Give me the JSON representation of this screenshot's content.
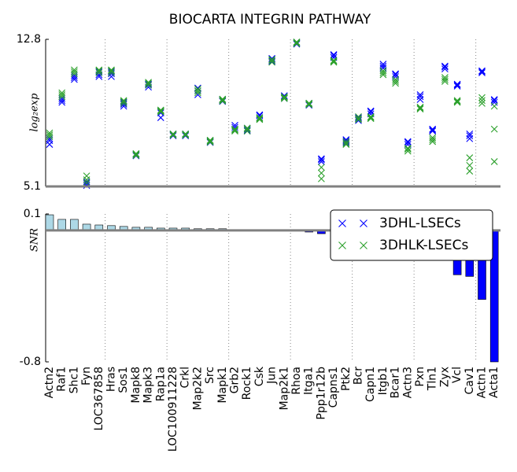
{
  "chart_data": [
    {
      "type": "scatter",
      "title": "BIOCARTA INTEGRIN PATHWAY",
      "y_label": "log₂exp",
      "ylim": [
        5.1,
        12.8
      ],
      "yticks": [
        5.1,
        12.8
      ],
      "series": [
        {
          "name": "3DHL-LSECs",
          "color": "#0000ff",
          "values": [
            [
              7.3,
              7.5,
              7.6
            ],
            [
              9.5,
              9.6,
              9.7
            ],
            [
              10.7,
              10.8,
              10.9
            ],
            [
              5.15,
              5.25,
              5.35
            ],
            [
              10.85,
              10.95,
              11.1
            ],
            [
              10.85,
              11.0,
              11.1
            ],
            [
              9.3,
              9.4,
              9.5
            ],
            [
              6.7,
              6.75,
              6.8
            ],
            [
              10.3,
              10.4,
              10.45
            ],
            [
              8.7,
              8.95,
              9.05
            ],
            [
              7.75,
              7.8,
              7.85
            ],
            [
              7.75,
              7.8,
              7.85
            ],
            [
              9.9,
              10.1,
              10.25
            ],
            [
              7.4,
              7.45,
              7.5
            ],
            [
              9.55,
              9.6,
              9.65
            ],
            [
              8.1,
              8.2,
              8.3
            ],
            [
              8.0,
              8.05,
              8.15
            ],
            [
              8.7,
              8.8,
              8.85
            ],
            [
              11.65,
              11.75,
              11.8
            ],
            [
              9.7,
              9.8,
              9.85
            ],
            [
              12.55,
              12.6,
              12.65
            ],
            [
              9.35,
              9.4,
              9.45
            ],
            [
              6.4,
              6.5,
              6.55
            ],
            [
              11.85,
              11.95,
              12.0
            ],
            [
              7.4,
              7.5,
              7.55
            ],
            [
              8.55,
              8.65,
              8.7
            ],
            [
              8.9,
              9.0,
              9.05
            ],
            [
              11.3,
              11.4,
              11.5
            ],
            [
              10.85,
              10.95,
              11.0
            ],
            [
              7.3,
              7.4,
              7.45
            ],
            [
              9.65,
              9.8,
              9.9
            ],
            [
              8.0,
              8.05,
              8.1
            ],
            [
              11.25,
              11.35,
              11.4
            ],
            [
              10.35,
              10.4,
              10.45
            ],
            [
              7.6,
              7.75,
              7.85
            ],
            [
              11.05,
              11.1,
              11.15
            ],
            [
              9.5,
              9.6,
              9.65
            ]
          ]
        },
        {
          "name": "3DHLK-LSECs",
          "color": "#2ca02c",
          "values": [
            [
              7.7,
              7.8,
              7.9
            ],
            [
              9.8,
              9.9,
              10.0
            ],
            [
              11.0,
              11.1,
              11.2
            ],
            [
              5.3,
              5.45,
              5.65
            ],
            [
              11.05,
              11.15,
              11.2
            ],
            [
              11.05,
              11.15,
              11.2
            ],
            [
              9.45,
              9.55,
              9.6
            ],
            [
              6.72,
              6.78,
              6.82
            ],
            [
              10.4,
              10.5,
              10.55
            ],
            [
              9.0,
              9.05,
              9.1
            ],
            [
              7.78,
              7.82,
              7.85
            ],
            [
              7.78,
              7.82,
              7.85
            ],
            [
              10.0,
              10.1,
              10.2
            ],
            [
              7.42,
              7.47,
              7.52
            ],
            [
              9.57,
              9.62,
              9.67
            ],
            [
              8.0,
              8.05,
              8.1
            ],
            [
              8.0,
              8.1,
              8.15
            ],
            [
              8.6,
              8.65,
              8.7
            ],
            [
              11.6,
              11.7,
              11.75
            ],
            [
              9.7,
              9.75,
              9.8
            ],
            [
              12.58,
              12.62,
              12.66
            ],
            [
              9.38,
              9.42,
              9.46
            ],
            [
              5.5,
              5.8,
              6.1
            ],
            [
              11.6,
              11.65,
              11.7
            ],
            [
              7.3,
              7.35,
              7.45
            ],
            [
              8.6,
              8.65,
              8.75
            ],
            [
              8.65,
              8.7,
              8.75
            ],
            [
              10.95,
              11.05,
              11.15
            ],
            [
              10.5,
              10.6,
              10.7
            ],
            [
              6.95,
              7.05,
              7.1
            ],
            [
              9.15,
              9.2,
              9.25
            ],
            [
              7.45,
              7.55,
              7.65
            ],
            [
              10.6,
              10.7,
              10.8
            ],
            [
              9.5,
              9.55,
              9.6
            ],
            [
              5.9,
              6.2,
              6.6
            ],
            [
              9.45,
              9.6,
              9.75
            ],
            [
              6.4,
              8.1,
              9.3
            ]
          ]
        }
      ]
    },
    {
      "type": "bar",
      "y_label": "SNR",
      "ylim": [
        -0.8,
        0.1
      ],
      "yticks": [
        -0.8,
        0.1
      ],
      "categories": [
        "Actn2",
        "Raf1",
        "Shc1",
        "Fyn",
        "LOC367858",
        "Hras",
        "Sos1",
        "Mapk8",
        "Mapk3",
        "Rap1a",
        "LOC100911228",
        "Crkl",
        "Map2k2",
        "Src",
        "Mapk1",
        "Grb2",
        "Rock1",
        "Csk",
        "Jun",
        "Map2k1",
        "Rhoa",
        "Itga1",
        "Ppp1r12b",
        "Capns1",
        "Ptk2",
        "Bcr",
        "Capn1",
        "Itgb1",
        "Bcar1",
        "Actn3",
        "Pxn",
        "Tln1",
        "Zyx",
        "Vcl",
        "Cav1",
        "Actn1",
        "Acta1"
      ],
      "values": [
        0.095,
        0.067,
        0.067,
        0.038,
        0.033,
        0.029,
        0.024,
        0.019,
        0.019,
        0.014,
        0.014,
        0.014,
        0.01,
        0.01,
        0.01,
        0.005,
        0.002,
        0.002,
        0.002,
        0.001,
        -0.002,
        -0.01,
        -0.02,
        -0.002,
        -0.001,
        -0.001,
        -0.001,
        -0.001,
        -0.001,
        -0.001,
        -0.001,
        -0.001,
        -0.001,
        -0.27,
        -0.28,
        -0.42,
        -0.8
      ],
      "positive_color": "#add8e6",
      "negative_color": "#0000ff"
    }
  ]
}
